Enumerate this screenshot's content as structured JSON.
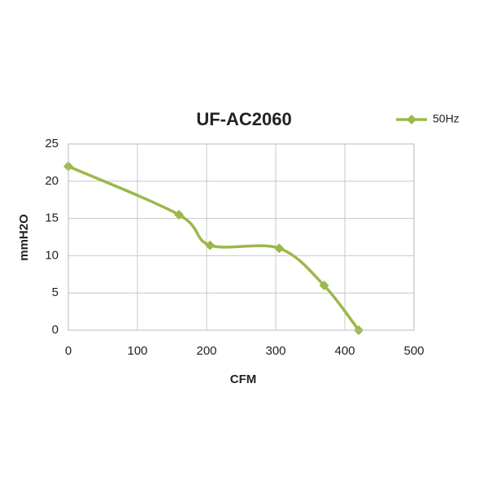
{
  "chart_data": {
    "type": "line",
    "title": "UF-AC2060",
    "x_label": "CFM",
    "y_label": "mmH2O",
    "x": [
      0,
      160,
      205,
      305,
      370,
      420
    ],
    "series": [
      {
        "name": "50Hz",
        "color": "#9bb84a",
        "values": [
          22,
          15.5,
          11.4,
          11,
          6,
          0
        ]
      }
    ],
    "xlim": [
      0,
      500
    ],
    "xticks": [
      0,
      100,
      200,
      300,
      400,
      500
    ],
    "ylim": [
      0,
      25
    ],
    "yticks": [
      0,
      5,
      10,
      15,
      20,
      25
    ],
    "grid": true,
    "smooth": true,
    "legend": "top-right"
  }
}
